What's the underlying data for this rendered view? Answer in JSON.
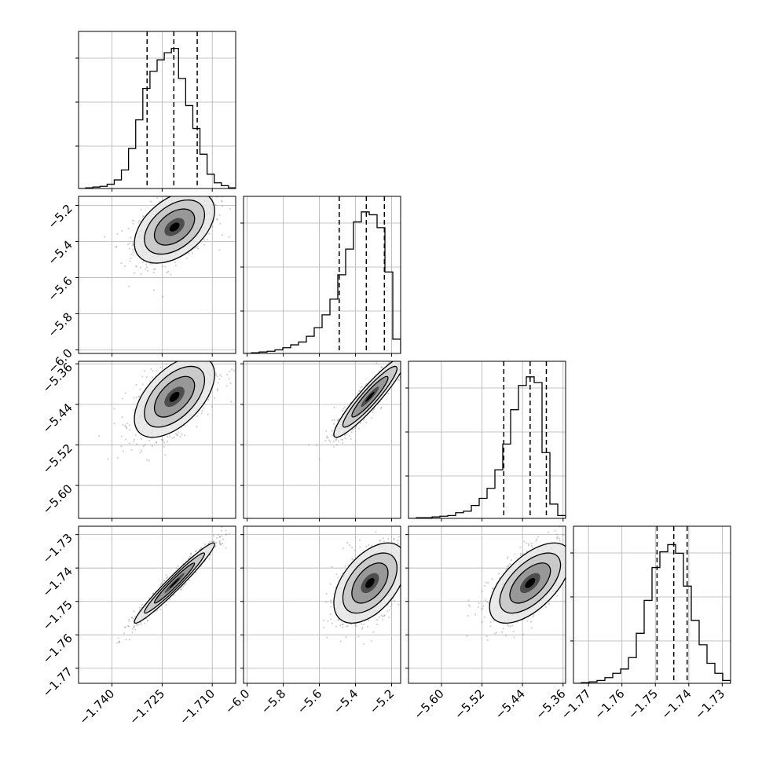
{
  "chart_data": {
    "type": "corner",
    "parameters": [
      {
        "range": [
          -1.75,
          -1.703
        ],
        "ticks": [
          -1.74,
          -1.725,
          -1.71
        ],
        "tick_labels": [
          "−1.740",
          "−1.725",
          "−1.710"
        ],
        "quantiles": [
          -1.7295,
          -1.7215,
          -1.7145
        ],
        "hist_bins": [
          0,
          0.005,
          0.01,
          0.015,
          0.03,
          0.06,
          0.13,
          0.28,
          0.48,
          0.7,
          0.82,
          0.9,
          0.95,
          0.98,
          0.77,
          0.58,
          0.42,
          0.24,
          0.1,
          0.04,
          0.02,
          0.005
        ],
        "center": [
          -1.7213
        ],
        "spread": 0.006
      },
      {
        "range": [
          -6.02,
          -5.15
        ],
        "ticks": [
          -6.0,
          -5.8,
          -5.6,
          -5.4,
          -5.2
        ],
        "tick_labels": [
          "−6.0",
          "−5.8",
          "−5.6",
          "−5.4",
          "−5.2"
        ],
        "quantiles": [
          -5.49,
          -5.34,
          -5.24
        ],
        "hist_bins": [
          0,
          0.005,
          0.01,
          0.015,
          0.025,
          0.04,
          0.06,
          0.08,
          0.12,
          0.18,
          0.27,
          0.38,
          0.55,
          0.73,
          0.92,
          0.99,
          0.97,
          0.88,
          0.57,
          0.1
        ],
        "center": [
          -5.32
        ],
        "spread": 0.1
      },
      {
        "range": [
          -5.665,
          -5.355
        ],
        "ticks": [
          -5.6,
          -5.52,
          -5.44,
          -5.36
        ],
        "tick_labels": [
          "−5.60",
          "−5.52",
          "−5.44",
          "−5.36"
        ],
        "quantiles": [
          -5.477,
          -5.425,
          -5.393
        ],
        "hist_bins": [
          0,
          0.005,
          0.005,
          0.01,
          0.015,
          0.02,
          0.04,
          0.05,
          0.09,
          0.14,
          0.21,
          0.34,
          0.52,
          0.76,
          0.93,
          0.99,
          0.95,
          0.46,
          0.1,
          0.02
        ],
        "center": [
          -5.425
        ],
        "spread": 0.04
      },
      {
        "range": [
          -1.7745,
          -1.7275
        ],
        "ticks": [
          -1.77,
          -1.76,
          -1.75,
          -1.74,
          -1.73
        ],
        "tick_labels": [
          "−1.77",
          "−1.76",
          "−1.75",
          "−1.74",
          "−1.73"
        ],
        "quantiles": [
          -1.7495,
          -1.7445,
          -1.7405
        ],
        "hist_bins": [
          0,
          0.005,
          0.01,
          0.02,
          0.04,
          0.07,
          0.1,
          0.18,
          0.35,
          0.58,
          0.81,
          0.92,
          0.97,
          0.91,
          0.68,
          0.44,
          0.27,
          0.14,
          0.07,
          0.02
        ],
        "center": [
          -1.7445
        ],
        "spread": 0.006
      }
    ],
    "y_ticks": {
      "1": [
        -5.2,
        -5.4,
        -5.6,
        -5.8,
        -6.0
      ],
      "2": [
        -5.36,
        -5.44,
        -5.52,
        -5.6
      ],
      "3": [
        -1.73,
        -1.74,
        -1.75,
        -1.76,
        -1.77
      ]
    },
    "y_tick_labels": {
      "1": [
        "−5.2",
        "−5.4",
        "−5.6",
        "−5.8",
        "−6.0"
      ],
      "2": [
        "−5.36",
        "−5.44",
        "−5.52",
        "−5.60"
      ],
      "3": [
        "−1.73",
        "−1.74",
        "−1.75",
        "−1.76",
        "−1.77"
      ]
    },
    "correlations": {
      "1-0": 0.45,
      "2-0": 0.55,
      "2-1": 0.93,
      "3-0": 0.97,
      "3-1": 0.5,
      "3-2": 0.6
    },
    "grid": true,
    "colors": {
      "line": "#000000",
      "scatter": "#7f7f7f",
      "grid": "#b0b0b0"
    }
  }
}
